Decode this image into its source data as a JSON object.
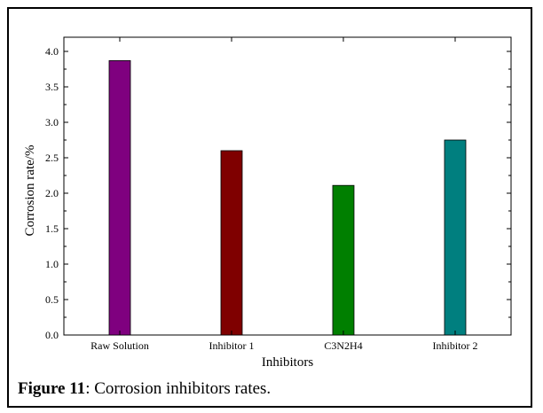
{
  "chart_data": {
    "type": "bar",
    "categories": [
      "Raw Solution",
      "Inhibitor 1",
      "C3N2H4",
      "Inhibitor 2"
    ],
    "values": [
      3.87,
      2.6,
      2.11,
      2.75
    ],
    "colors": [
      "#7f007f",
      "#7f0000",
      "#007f00",
      "#007f7f"
    ],
    "xlabel": "Inhibitors",
    "ylabel": "Corrosion rate/%",
    "ylim": [
      0,
      4.2
    ],
    "yticks": [
      0.0,
      0.5,
      1.0,
      1.5,
      2.0,
      2.5,
      3.0,
      3.5,
      4.0
    ],
    "ytick_labels": [
      "0.0",
      "0.5",
      "1.0",
      "1.5",
      "2.0",
      "2.5",
      "3.0",
      "3.5",
      "4.0"
    ],
    "grid": false,
    "legend": "none"
  },
  "caption": {
    "label": "Figure 11",
    "text": ": Corrosion inhibitors rates."
  }
}
